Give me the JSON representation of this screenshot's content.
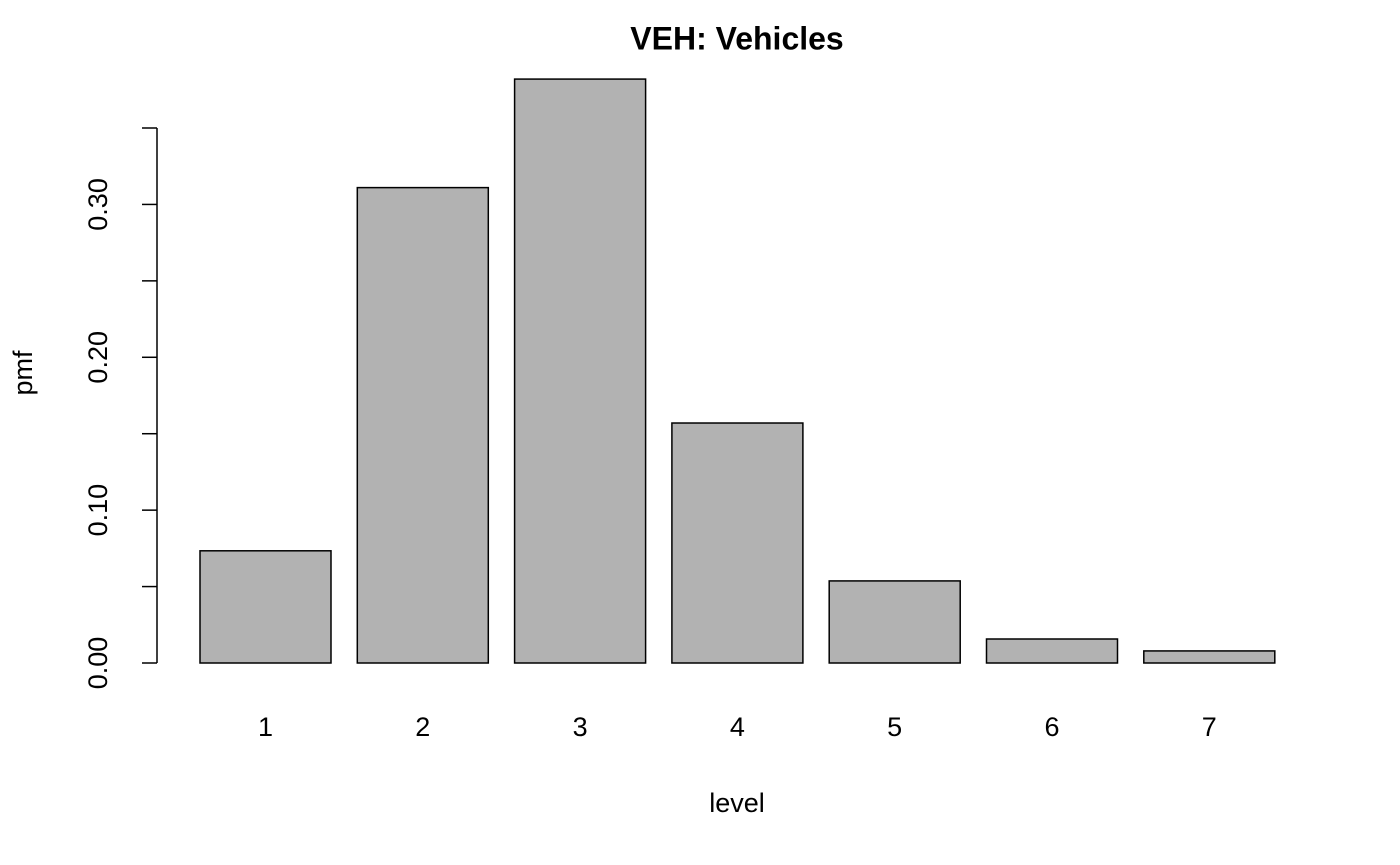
{
  "chart_data": {
    "type": "bar",
    "title": "VEH: Vehicles",
    "x_label": "level",
    "y_label": "pmf",
    "categories": [
      "1",
      "2",
      "3",
      "4",
      "5",
      "6",
      "7"
    ],
    "values": [
      0.0734,
      0.311,
      0.382,
      0.157,
      0.0537,
      0.0157,
      0.0079
    ],
    "color": "#b2b2b2",
    "ylim": [
      0,
      0.35
    ],
    "yticks": [
      {
        "value": 0,
        "label": "0.00"
      },
      {
        "value": 0.1,
        "label": "0.10"
      },
      {
        "value": 0.2,
        "label": "0.20"
      },
      {
        "value": 0.3,
        "label": "0.30"
      }
    ],
    "minor_yticks": [
      0.05,
      0.15,
      0.25,
      0.35
    ],
    "grid": false
  }
}
